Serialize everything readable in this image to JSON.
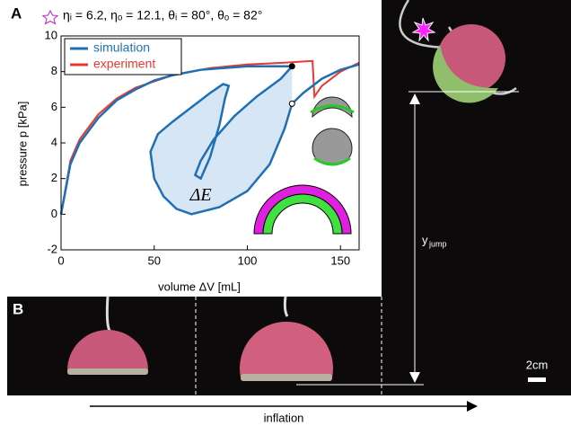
{
  "panels": {
    "a": "A",
    "b": "B"
  },
  "chart_data": {
    "type": "line",
    "title": "ηᵢ = 6.2, ηₒ = 12.1, θᵢ = 80°, θₒ = 82°",
    "xlabel": "volume ΔV [mL]",
    "ylabel": "pressure p [kPa]",
    "xlim": [
      0,
      160
    ],
    "ylim": [
      -2,
      10
    ],
    "xticks": [
      0,
      50,
      100,
      150
    ],
    "yticks": [
      -2,
      0,
      2,
      4,
      6,
      8,
      10
    ],
    "legend": "upper left",
    "series": [
      {
        "name": "simulation",
        "color": "#1f6fb5",
        "x": [
          0,
          5,
          10,
          20,
          30,
          40,
          50,
          60,
          75,
          100,
          124,
          118,
          105,
          93,
          82,
          75,
          72,
          75,
          80,
          85,
          88,
          90,
          87,
          80,
          70,
          60,
          52,
          48,
          50,
          55,
          62,
          70,
          85,
          100,
          112,
          120,
          124,
          130,
          140,
          150,
          160
        ],
        "values": [
          0,
          2.8,
          4,
          5.4,
          6.4,
          7.0,
          7.5,
          7.8,
          8.1,
          8.3,
          8.3,
          7.6,
          6.6,
          5.5,
          4.2,
          3.0,
          2.2,
          2.0,
          3.2,
          5.0,
          6.5,
          7.2,
          7.3,
          6.8,
          6.0,
          5.2,
          4.5,
          3.5,
          2.0,
          1.0,
          0.3,
          0.0,
          0.4,
          1.3,
          2.8,
          4.8,
          6.2,
          6.8,
          7.6,
          8.1,
          8.4
        ]
      },
      {
        "name": "experiment",
        "color": "#e8392f",
        "x": [
          0,
          5,
          10,
          20,
          30,
          40,
          60,
          80,
          100,
          120,
          135,
          136,
          140,
          150,
          160
        ],
        "values": [
          0,
          3.0,
          4.2,
          5.6,
          6.5,
          7.1,
          7.8,
          8.2,
          8.4,
          8.5,
          8.6,
          6.6,
          7.2,
          8.0,
          8.5
        ]
      }
    ],
    "markers": [
      {
        "x": 124,
        "y": 8.3,
        "filled": true
      },
      {
        "x": 124,
        "y": 6.2,
        "filled": false
      }
    ],
    "shade_color": "#d6e6f4",
    "annotation": {
      "text": "ΔE",
      "x": 75,
      "y": 1.0
    }
  },
  "photo": {
    "jump_label": "y",
    "jump_sub": "jump",
    "scale_label": "2cm",
    "arrow_label": "inflation"
  }
}
